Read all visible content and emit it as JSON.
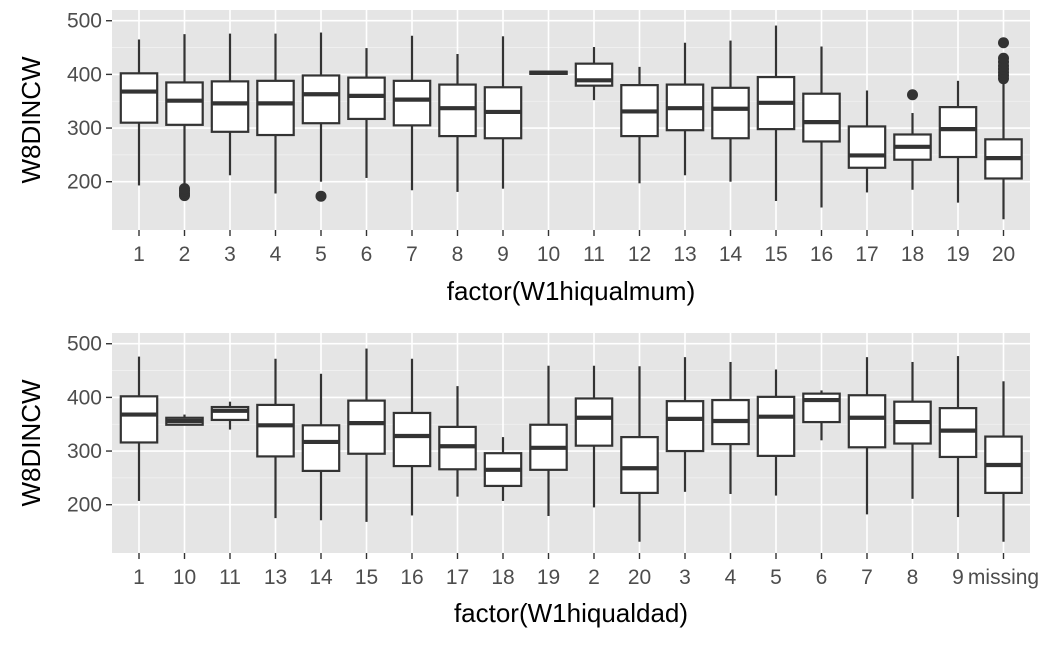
{
  "chart_data": [
    {
      "type": "boxplot",
      "xlabel": "factor(W1hiqualmum)",
      "ylabel": "W8DINCW",
      "ylim": [
        110,
        520
      ],
      "yticks": [
        200,
        300,
        400,
        500
      ],
      "grid": true,
      "categories": [
        "1",
        "2",
        "3",
        "4",
        "5",
        "6",
        "7",
        "8",
        "9",
        "10",
        "11",
        "12",
        "13",
        "14",
        "15",
        "16",
        "17",
        "18",
        "19",
        "20"
      ],
      "boxes": [
        {
          "min": 193,
          "q1": 310,
          "median": 368,
          "q3": 402,
          "max": 465,
          "outliers": []
        },
        {
          "min": 192,
          "q1": 306,
          "median": 351,
          "q3": 385,
          "max": 475,
          "outliers": [
            174,
            178,
            183,
            187
          ]
        },
        {
          "min": 212,
          "q1": 293,
          "median": 346,
          "q3": 387,
          "max": 476,
          "outliers": []
        },
        {
          "min": 178,
          "q1": 287,
          "median": 346,
          "q3": 388,
          "max": 476,
          "outliers": []
        },
        {
          "min": 200,
          "q1": 309,
          "median": 363,
          "q3": 398,
          "max": 478,
          "outliers": [
            173
          ]
        },
        {
          "min": 207,
          "q1": 317,
          "median": 360,
          "q3": 394,
          "max": 449,
          "outliers": []
        },
        {
          "min": 184,
          "q1": 305,
          "median": 353,
          "q3": 388,
          "max": 472,
          "outliers": []
        },
        {
          "min": 181,
          "q1": 285,
          "median": 337,
          "q3": 381,
          "max": 438,
          "outliers": []
        },
        {
          "min": 187,
          "q1": 281,
          "median": 330,
          "q3": 376,
          "max": 471,
          "outliers": []
        },
        {
          "min": 401,
          "q1": 401,
          "median": 403,
          "q3": 405,
          "max": 405,
          "outliers": []
        },
        {
          "min": 352,
          "q1": 379,
          "median": 389,
          "q3": 420,
          "max": 451,
          "outliers": []
        },
        {
          "min": 197,
          "q1": 285,
          "median": 331,
          "q3": 380,
          "max": 414,
          "outliers": []
        },
        {
          "min": 212,
          "q1": 296,
          "median": 337,
          "q3": 381,
          "max": 459,
          "outliers": []
        },
        {
          "min": 200,
          "q1": 281,
          "median": 336,
          "q3": 375,
          "max": 463,
          "outliers": []
        },
        {
          "min": 164,
          "q1": 298,
          "median": 347,
          "q3": 395,
          "max": 491,
          "outliers": []
        },
        {
          "min": 152,
          "q1": 275,
          "median": 311,
          "q3": 364,
          "max": 452,
          "outliers": []
        },
        {
          "min": 180,
          "q1": 226,
          "median": 249,
          "q3": 303,
          "max": 370,
          "outliers": []
        },
        {
          "min": 185,
          "q1": 241,
          "median": 265,
          "q3": 288,
          "max": 328,
          "outliers": [
            362
          ]
        },
        {
          "min": 161,
          "q1": 246,
          "median": 298,
          "q3": 339,
          "max": 388,
          "outliers": []
        },
        {
          "min": 130,
          "q1": 206,
          "median": 244,
          "q3": 279,
          "max": 385,
          "outliers": [
            392,
            398,
            404,
            410,
            416,
            423,
            430,
            459
          ]
        }
      ]
    },
    {
      "type": "boxplot",
      "xlabel": "factor(W1hiqualdad)",
      "ylabel": "W8DINCW",
      "ylim": [
        110,
        520
      ],
      "yticks": [
        200,
        300,
        400,
        500
      ],
      "grid": true,
      "categories": [
        "1",
        "10",
        "11",
        "13",
        "14",
        "15",
        "16",
        "17",
        "18",
        "19",
        "2",
        "20",
        "3",
        "4",
        "5",
        "6",
        "7",
        "8",
        "9",
        "missing"
      ],
      "boxes": [
        {
          "min": 207,
          "q1": 316,
          "median": 368,
          "q3": 402,
          "max": 476,
          "outliers": []
        },
        {
          "min": 348,
          "q1": 349,
          "median": 356,
          "q3": 362,
          "max": 368,
          "outliers": []
        },
        {
          "min": 340,
          "q1": 358,
          "median": 375,
          "q3": 382,
          "max": 392,
          "outliers": []
        },
        {
          "min": 175,
          "q1": 290,
          "median": 348,
          "q3": 386,
          "max": 472,
          "outliers": []
        },
        {
          "min": 171,
          "q1": 263,
          "median": 317,
          "q3": 348,
          "max": 444,
          "outliers": []
        },
        {
          "min": 168,
          "q1": 295,
          "median": 352,
          "q3": 394,
          "max": 491,
          "outliers": []
        },
        {
          "min": 180,
          "q1": 272,
          "median": 328,
          "q3": 371,
          "max": 472,
          "outliers": []
        },
        {
          "min": 215,
          "q1": 266,
          "median": 309,
          "q3": 345,
          "max": 421,
          "outliers": []
        },
        {
          "min": 207,
          "q1": 235,
          "median": 265,
          "q3": 296,
          "max": 326,
          "outliers": []
        },
        {
          "min": 179,
          "q1": 265,
          "median": 306,
          "q3": 349,
          "max": 459,
          "outliers": []
        },
        {
          "min": 195,
          "q1": 310,
          "median": 362,
          "q3": 398,
          "max": 459,
          "outliers": []
        },
        {
          "min": 131,
          "q1": 222,
          "median": 268,
          "q3": 326,
          "max": 458,
          "outliers": []
        },
        {
          "min": 224,
          "q1": 300,
          "median": 360,
          "q3": 393,
          "max": 475,
          "outliers": []
        },
        {
          "min": 220,
          "q1": 313,
          "median": 356,
          "q3": 395,
          "max": 466,
          "outliers": []
        },
        {
          "min": 217,
          "q1": 291,
          "median": 364,
          "q3": 401,
          "max": 452,
          "outliers": []
        },
        {
          "min": 320,
          "q1": 354,
          "median": 395,
          "q3": 407,
          "max": 413,
          "outliers": []
        },
        {
          "min": 182,
          "q1": 307,
          "median": 362,
          "q3": 404,
          "max": 475,
          "outliers": []
        },
        {
          "min": 211,
          "q1": 314,
          "median": 354,
          "q3": 392,
          "max": 466,
          "outliers": []
        },
        {
          "min": 177,
          "q1": 289,
          "median": 338,
          "q3": 380,
          "max": 477,
          "outliers": []
        },
        {
          "min": 131,
          "q1": 222,
          "median": 274,
          "q3": 327,
          "max": 430,
          "outliers": []
        }
      ]
    }
  ]
}
